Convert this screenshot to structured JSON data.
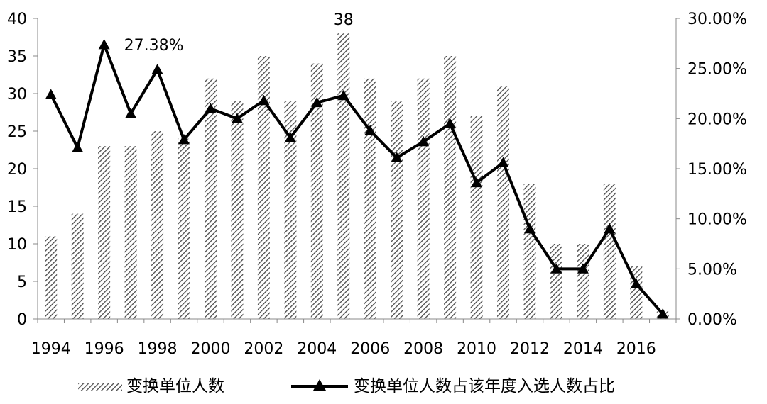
{
  "chart_data": {
    "type": "bar+line",
    "categories": [
      "1994",
      "1995",
      "1996",
      "1997",
      "1998",
      "1999",
      "2000",
      "2001",
      "2002",
      "2003",
      "2004",
      "2005",
      "2006",
      "2007",
      "2008",
      "2009",
      "2010",
      "2011",
      "2012",
      "2013",
      "2014",
      "2015",
      "2016",
      "2017"
    ],
    "x_tick_labels": [
      "1994",
      "1996",
      "1998",
      "2000",
      "2002",
      "2004",
      "2006",
      "2008",
      "2010",
      "2012",
      "2014",
      "2016"
    ],
    "series": [
      {
        "name": "变换单位人数",
        "type": "bar",
        "axis": "left",
        "pattern": "diagonal-hatch",
        "values": [
          11,
          14,
          23,
          23,
          25,
          24,
          32,
          29,
          35,
          29,
          34,
          38,
          32,
          29,
          32,
          35,
          27,
          31,
          18,
          10,
          10,
          18,
          7,
          1
        ]
      },
      {
        "name": "变换单位人数占该年度入选人数占比",
        "type": "line",
        "axis": "right",
        "marker": "triangle",
        "values": [
          22.4,
          17.1,
          27.38,
          20.5,
          24.9,
          17.9,
          21.0,
          20.0,
          21.8,
          18.1,
          21.6,
          22.3,
          18.8,
          16.1,
          17.7,
          19.5,
          13.6,
          15.6,
          9.0,
          5.0,
          5.0,
          9.0,
          3.5,
          0.5
        ]
      }
    ],
    "y_left": {
      "ticks": [
        "0",
        "5",
        "10",
        "15",
        "20",
        "25",
        "30",
        "35",
        "40"
      ],
      "ylim": [
        0,
        40
      ]
    },
    "y_right": {
      "ticks": [
        "0.00%",
        "5.00%",
        "10.00%",
        "15.00%",
        "20.00%",
        "25.00%",
        "30.00%"
      ],
      "ylim": [
        0,
        30
      ]
    },
    "annotations": [
      {
        "text": "38",
        "category": "2005",
        "series": 0
      },
      {
        "text": "27.38%",
        "category": "1996",
        "series": 1
      }
    ],
    "legend": {
      "placement": "bottom",
      "items": [
        "变换单位人数",
        "变换单位人数占该年度入选人数占比"
      ]
    },
    "grid": false,
    "colors": {
      "bar": "#555555",
      "line": "#000000"
    }
  }
}
